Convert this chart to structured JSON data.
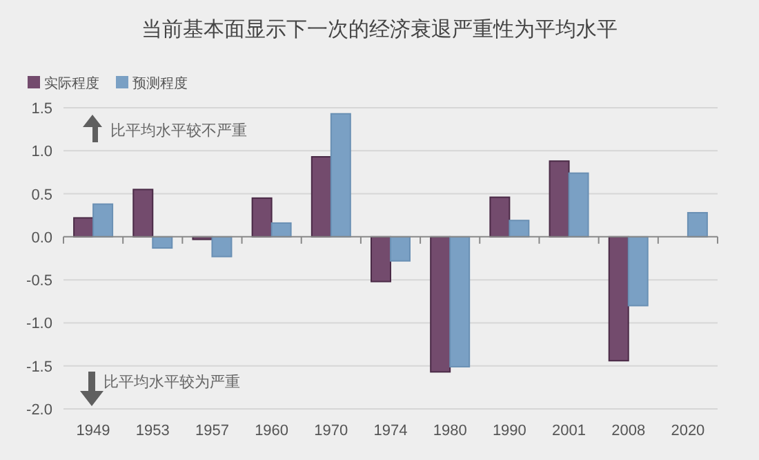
{
  "chart_data": {
    "type": "bar",
    "title": "当前基本面显示下一次的经济衰退严重性为平均水平",
    "categories": [
      "1949",
      "1953",
      "1957",
      "1960",
      "1970",
      "1974",
      "1980",
      "1990",
      "2001",
      "2008",
      "2020"
    ],
    "series": [
      {
        "name": "实际程度",
        "color": "#734b6d",
        "values": [
          0.22,
          0.55,
          -0.03,
          0.45,
          0.93,
          -0.52,
          -1.57,
          0.46,
          0.88,
          -1.44,
          null
        ]
      },
      {
        "name": "预测程度",
        "color": "#7aa0c4",
        "values": [
          0.38,
          -0.13,
          -0.23,
          0.16,
          1.43,
          -0.28,
          -1.51,
          0.19,
          0.74,
          -0.8,
          0.28
        ]
      }
    ],
    "ylim": [
      -2.0,
      1.5
    ],
    "yticks": [
      {
        "value": -2,
        "label": "-2.0"
      },
      {
        "value": -1.5,
        "label": "-1.5"
      },
      {
        "value": -1,
        "label": "-1.0"
      },
      {
        "value": -0.5,
        "label": "-0.5"
      },
      {
        "value": 0,
        "label": "0.0"
      },
      {
        "value": 0.5,
        "label": "0.5"
      },
      {
        "value": 1,
        "label": "1.0"
      },
      {
        "value": 1.5,
        "label": "1.5"
      }
    ],
    "grid": "y",
    "legend": "top left",
    "annotations": [
      "比平均水平较不严重",
      "比平均水平较为严重"
    ]
  }
}
